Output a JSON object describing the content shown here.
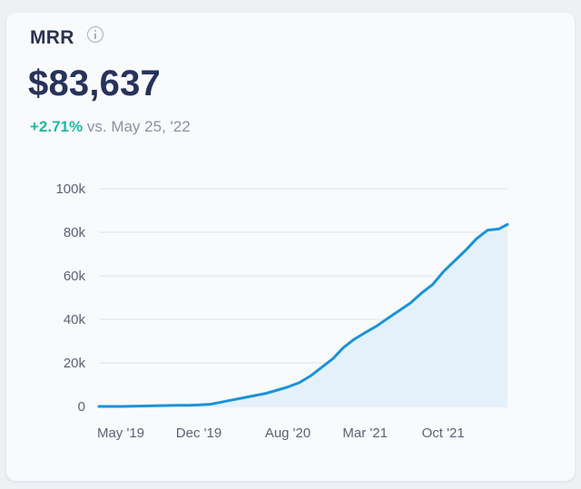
{
  "metric": {
    "title": "MRR",
    "value": "$83,637",
    "change": "+2.71%",
    "comparison": "vs. May 25, '22",
    "info_icon": "info-circle-icon"
  },
  "colors": {
    "line": "#1b93d6",
    "area": "#e4f1fb",
    "grid": "#dfe3ea",
    "tick": "#5a6275",
    "positive": "#1db8a3"
  },
  "chart_data": {
    "type": "area",
    "title": "MRR",
    "xlabel": "",
    "ylabel": "",
    "ylim": [
      0,
      100000
    ],
    "y_ticks": [
      0,
      20000,
      40000,
      60000,
      80000,
      100000
    ],
    "y_tick_labels": [
      "0",
      "20k",
      "40k",
      "60k",
      "80k",
      "100k"
    ],
    "x_ticks": [
      "2019-05-01",
      "2019-12-01",
      "2020-08-01",
      "2021-03-01",
      "2021-10-01"
    ],
    "x_tick_labels": [
      "May '19",
      "Dec '19",
      "Aug '20",
      "Mar '21",
      "Oct '21"
    ],
    "grid": true,
    "series": [
      {
        "x": [
          "2019-05-01",
          "2019-06-01",
          "2019-07-01",
          "2019-08-01",
          "2019-09-01",
          "2019-10-01",
          "2019-11-01",
          "2019-12-01",
          "2020-01-01",
          "2020-02-01",
          "2020-03-01",
          "2020-04-01",
          "2020-05-01",
          "2020-06-01",
          "2020-07-01",
          "2020-08-01",
          "2020-09-01",
          "2020-10-01",
          "2020-11-01",
          "2020-12-01",
          "2021-01-01",
          "2021-02-01",
          "2021-03-01",
          "2021-04-01",
          "2021-05-01",
          "2021-06-01",
          "2021-07-01",
          "2021-08-01",
          "2021-09-01",
          "2021-10-01",
          "2021-11-01",
          "2021-12-01",
          "2022-01-01",
          "2022-02-01",
          "2022-03-01",
          "2022-04-01",
          "2022-05-01",
          "2022-05-25"
        ],
        "y": [
          0,
          0,
          0,
          100,
          200,
          300,
          400,
          500,
          500,
          700,
          1000,
          2000,
          3000,
          4000,
          5000,
          6000,
          7500,
          9000,
          11000,
          14000,
          18000,
          22000,
          27000,
          31000,
          34000,
          37000,
          40500,
          44000,
          47500,
          52000,
          56000,
          62000,
          67000,
          72000,
          77000,
          81000,
          81500,
          83637
        ]
      }
    ]
  }
}
